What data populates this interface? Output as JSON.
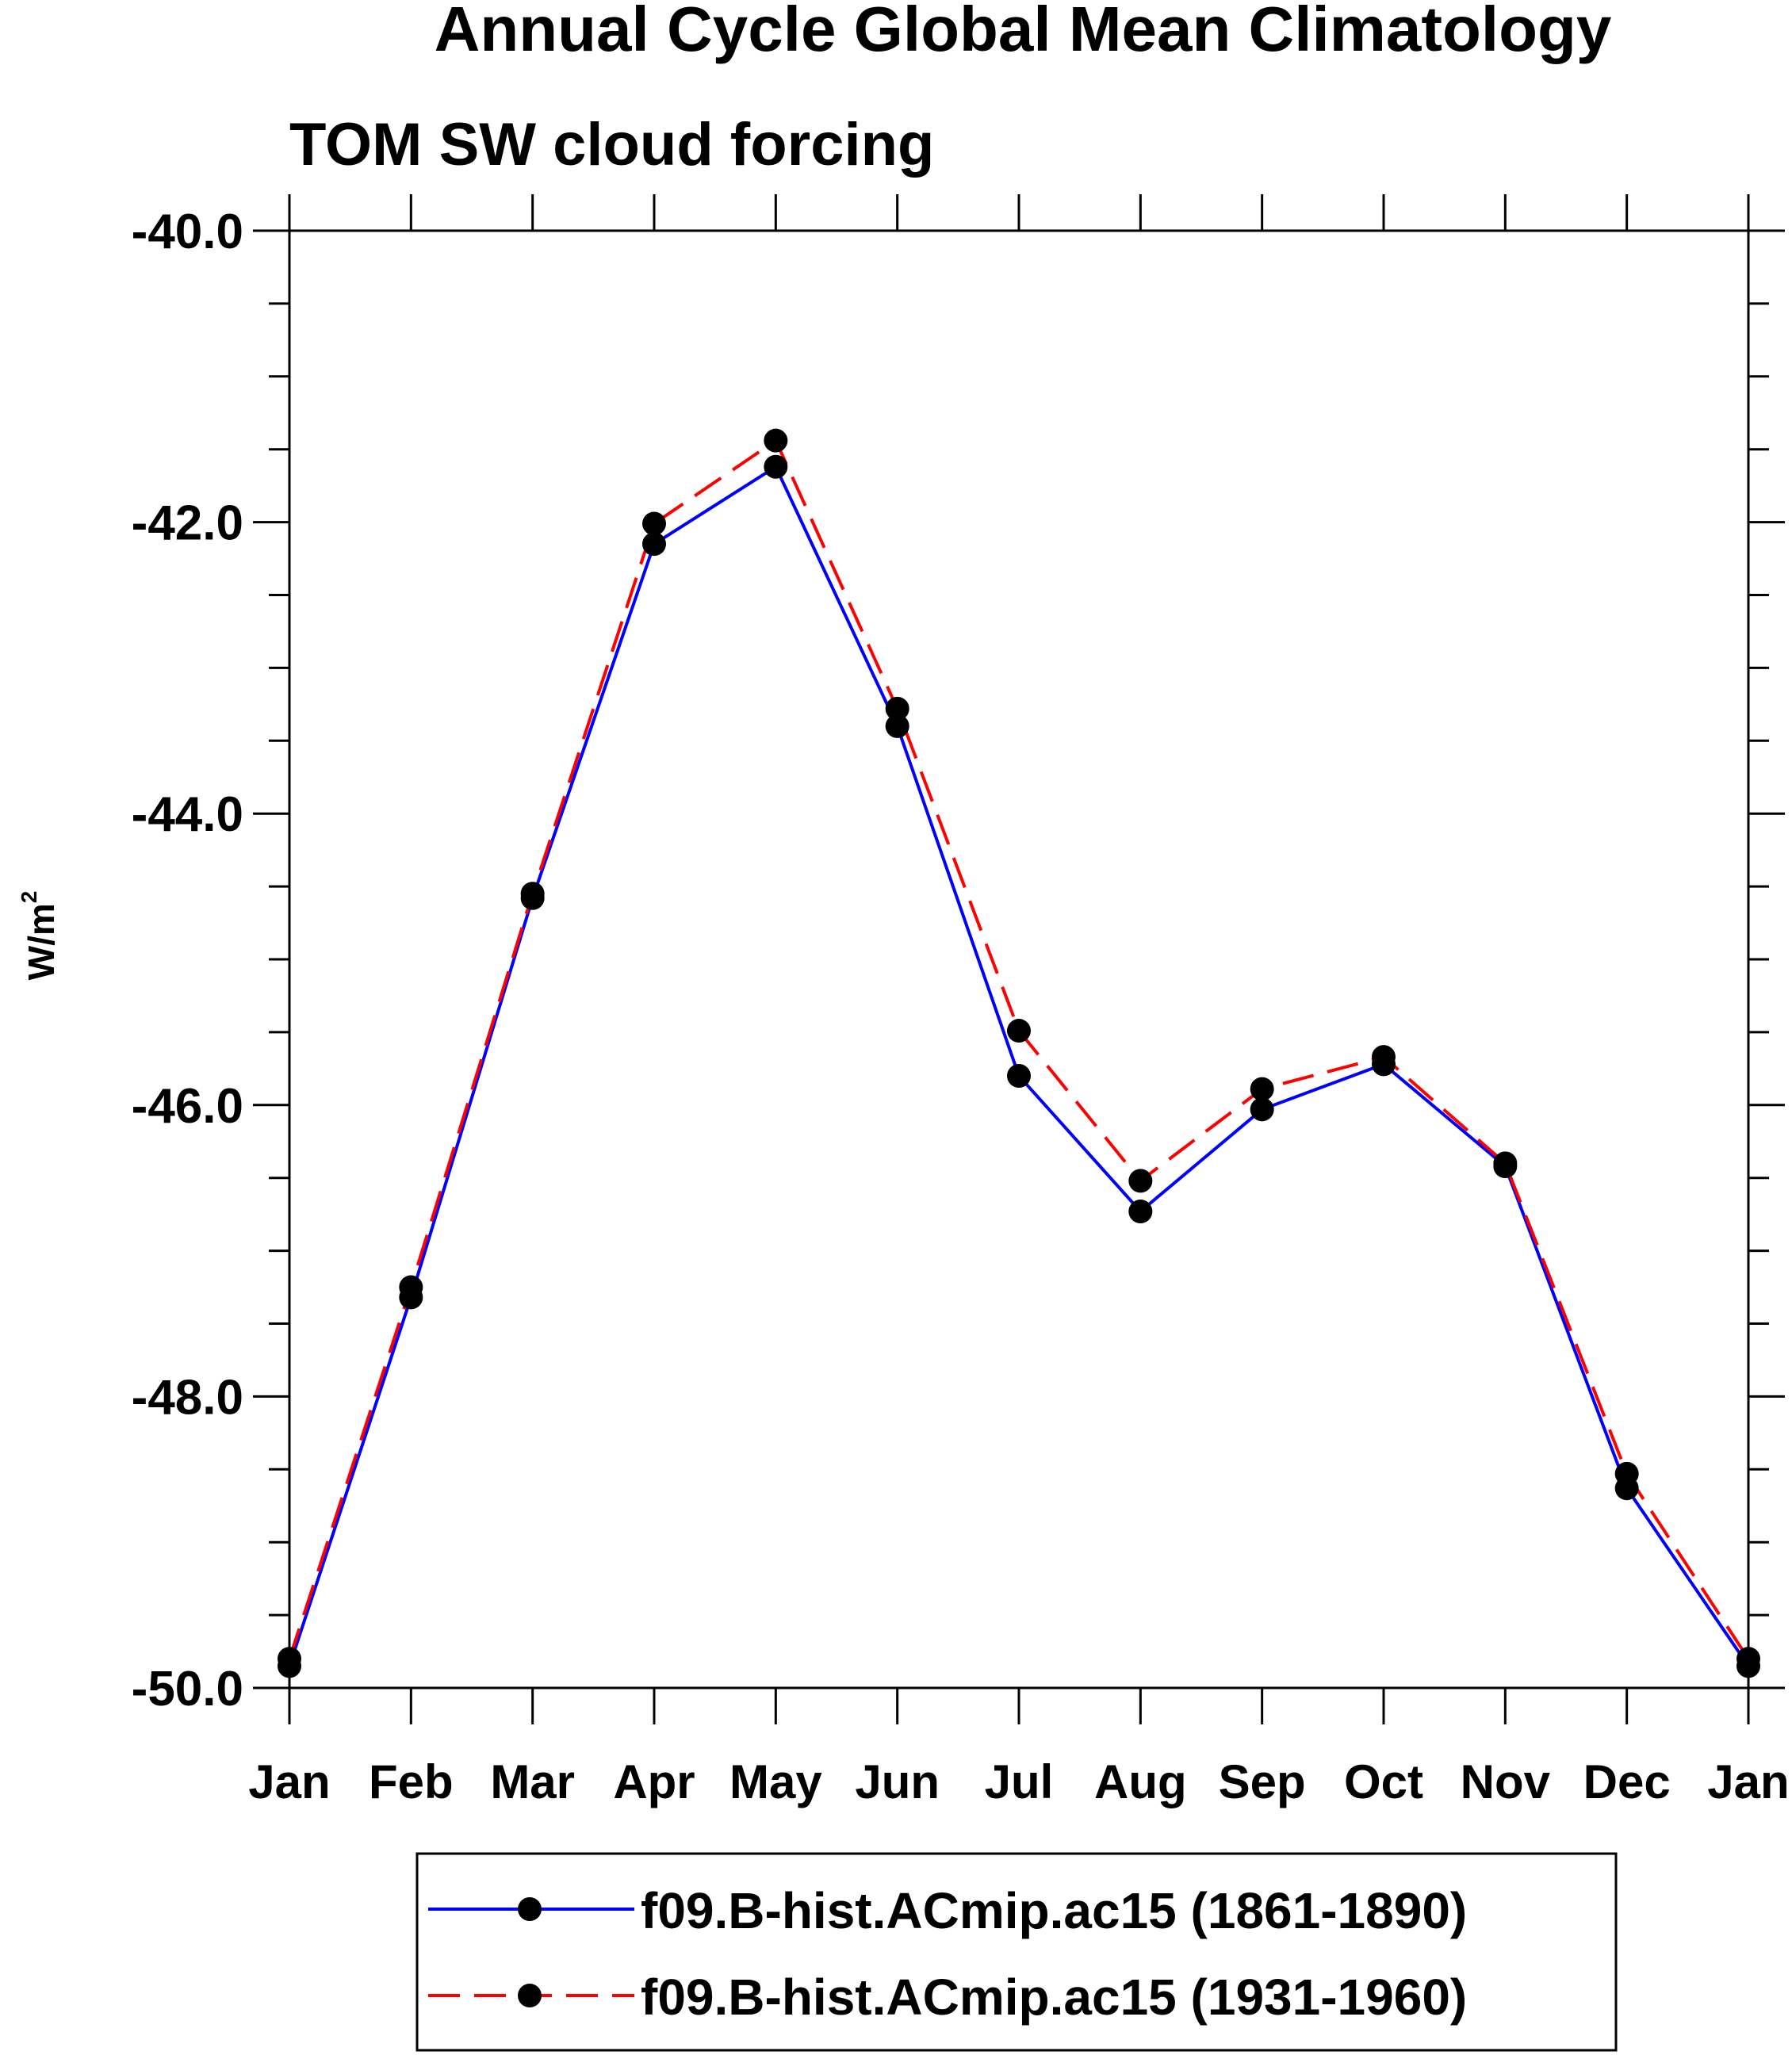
{
  "chart_data": {
    "type": "line",
    "title": "Annual Cycle Global Mean Climatology",
    "subtitle": "TOM SW cloud forcing",
    "ylabel": "W/m",
    "ylabel_superscript": "2",
    "xlabel": "",
    "categories": [
      "Jan",
      "Feb",
      "Mar",
      "Apr",
      "May",
      "Jun",
      "Jul",
      "Aug",
      "Sep",
      "Oct",
      "Nov",
      "Dec",
      "Jan"
    ],
    "ylim": [
      -50.0,
      -40.0
    ],
    "yticks": [
      -40.0,
      -42.0,
      -44.0,
      -46.0,
      -48.0,
      -50.0
    ],
    "ytick_labels": [
      "-40.0",
      "-42.0",
      "-44.0",
      "-46.0",
      "-48.0",
      "-50.0"
    ],
    "y_minor_step": 0.5,
    "legend_position": "bottom-center",
    "series": [
      {
        "name": "f09.B-hist.ACmip.ac15 (1861-1890)",
        "color": "#0000ff",
        "dash": "solid",
        "marker": "filled-circle",
        "values": [
          -49.85,
          -47.32,
          -44.58,
          -42.15,
          -41.62,
          -43.4,
          -45.8,
          -46.73,
          -46.03,
          -45.72,
          -46.42,
          -48.63,
          -49.85
        ]
      },
      {
        "name": "f09.B-hist.ACmip.ac15 (1931-1960)",
        "color": "#ff0000",
        "dash": "dashed",
        "marker": "filled-circle",
        "values": [
          -49.8,
          -47.25,
          -44.55,
          -42.01,
          -41.44,
          -43.28,
          -45.49,
          -46.52,
          -45.89,
          -45.67,
          -46.4,
          -48.53,
          -49.8
        ]
      }
    ]
  }
}
